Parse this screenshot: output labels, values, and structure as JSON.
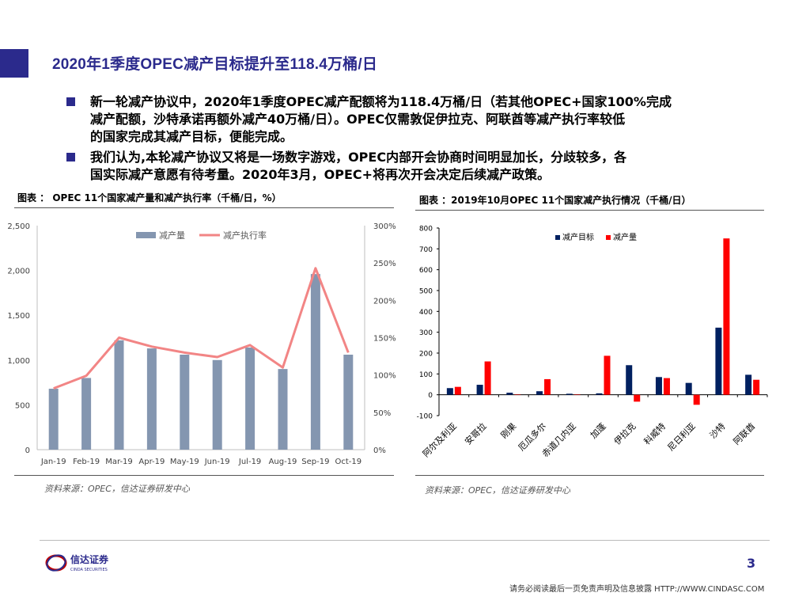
{
  "slide": {
    "title": "2020年1季度OPEC减产目标提升至118.4万桶/日",
    "page_number": "3"
  },
  "bullets": [
    {
      "lines": [
        "新一轮减产协议中，2020年1季度OPEC减产配额将为118.4万桶/日（若其他OPEC+国家100%完成",
        "减产配额，沙特承诺再额外减产40万桶/日）。OPEC仅需敦促伊拉克、阿联酋等减产执行率较低",
        "的国家完成其减产目标，便能完成。"
      ]
    },
    {
      "lines": [
        "我们认为,本轮减产协议又将是一场数字游戏，OPEC内部开会协商时间明显加长，分歧较多，各",
        "国实际减产意愿有待考量。2020年3月，OPEC+将再次开会决定后续减产政策。"
      ]
    }
  ],
  "figures": {
    "left_caption": "图表 ： OPEC 11个国家减产量和减产执行率（千桶/日，%）",
    "right_caption": "图表 ：2019年10月OPEC 11个国家减产执行情况（千桶/日）",
    "left_source": "资料来源：OPEC，信达证券研发中心",
    "right_source": "资料来源：OPEC，信达证券研发中心"
  },
  "footer": {
    "logo_name": "信达证券",
    "logo_sub": "CINDA SECURITIES",
    "disclaimer": "请务必阅读最后一页免责声明及信息披露  HTTP://WWW.CINDASC.COM"
  },
  "colors": {
    "brand": "#2b2a8c",
    "bar_left": "#8496b0",
    "line_left": "#f28585",
    "target_bar": "#002060",
    "actual_bar": "#ff0000"
  },
  "chart_data": [
    {
      "type": "bar",
      "categories": [
        "Jan-19",
        "Feb-19",
        "Mar-19",
        "Apr-19",
        "May-19",
        "Jun-19",
        "Jul-19",
        "Aug-19",
        "Sep-19",
        "Oct-19"
      ],
      "series": [
        {
          "name": "减产量",
          "type": "bar",
          "axis": "left",
          "values": [
            680,
            800,
            1220,
            1130,
            1060,
            1000,
            1140,
            900,
            1960,
            1060
          ]
        },
        {
          "name": "减产执行率",
          "type": "line",
          "axis": "right",
          "values": [
            82,
            99,
            150,
            138,
            130,
            124,
            140,
            110,
            243,
            130
          ]
        }
      ],
      "ylim": [
        0,
        2500
      ],
      "yticks": [
        "0",
        "500",
        "1,000",
        "1,500",
        "2,000",
        "2,500"
      ],
      "y2lim": [
        0,
        300
      ],
      "y2ticks": [
        "0%",
        "50%",
        "100%",
        "150%",
        "200%",
        "250%",
        "300%"
      ],
      "legend_position": "top",
      "grid": false
    },
    {
      "type": "bar",
      "categories": [
        "阿尔及利亚",
        "安哥拉",
        "刚果",
        "厄瓜多尔",
        "赤道几内亚",
        "加蓬",
        "伊拉克",
        "科威特",
        "尼日利亚",
        "沙特",
        "阿联酋"
      ],
      "series": [
        {
          "name": "减产目标",
          "values": [
            32,
            48,
            10,
            17,
            5,
            7,
            142,
            85,
            57,
            322,
            96
          ]
        },
        {
          "name": "减产量",
          "values": [
            38,
            160,
            2,
            75,
            2,
            187,
            -33,
            80,
            -48,
            750,
            72
          ]
        }
      ],
      "ylim": [
        -100,
        800
      ],
      "yticks": [
        "-100",
        "0",
        "100",
        "200",
        "300",
        "400",
        "500",
        "600",
        "700",
        "800"
      ],
      "legend_position": "top-right",
      "grid": false
    }
  ]
}
